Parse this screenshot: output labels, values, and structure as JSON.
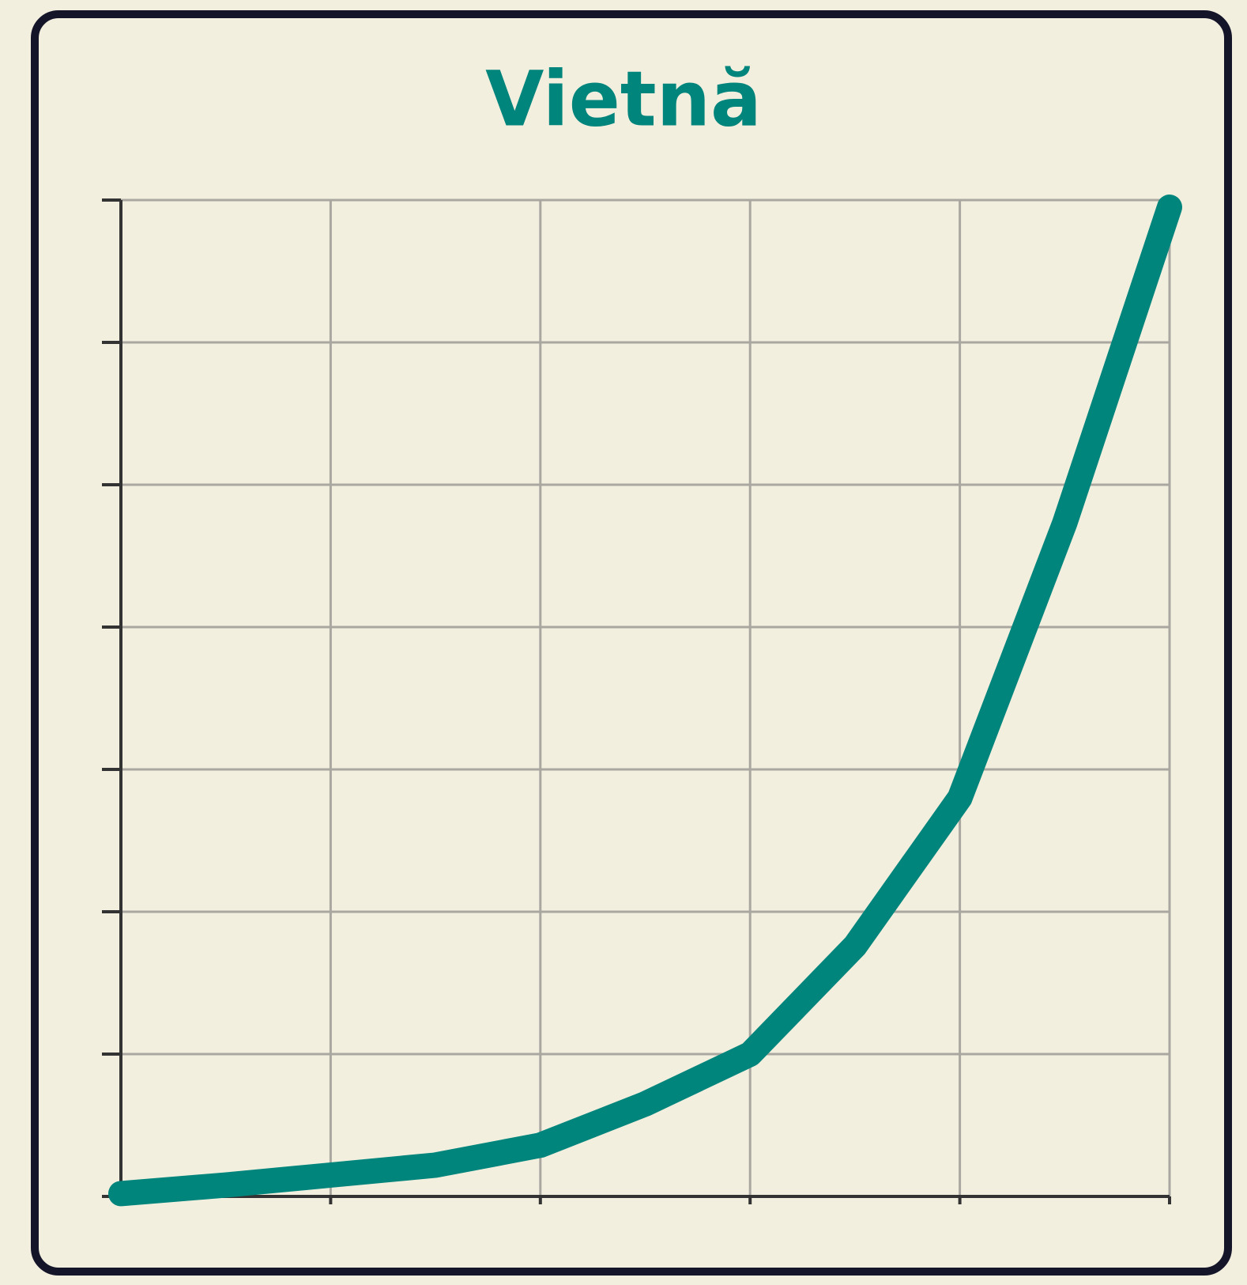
{
  "chart_data": {
    "type": "line",
    "title": "Vietnă",
    "x": [
      0,
      0.5,
      1,
      1.5,
      2,
      2.5,
      3,
      3.5,
      4,
      4.5,
      5
    ],
    "series": [
      {
        "name": null,
        "color": "#00857c",
        "values": [
          0.02,
          0.08,
          0.15,
          0.22,
          0.36,
          0.65,
          1.0,
          1.76,
          2.8,
          4.73,
          6.95
        ]
      }
    ],
    "xlim": [
      0,
      5
    ],
    "xticks": [
      0,
      1,
      2,
      3,
      4,
      5
    ],
    "ylim": [
      0,
      7
    ],
    "yticks": [
      0,
      1,
      2,
      3,
      4,
      5,
      6,
      7
    ],
    "grid": true
  }
}
